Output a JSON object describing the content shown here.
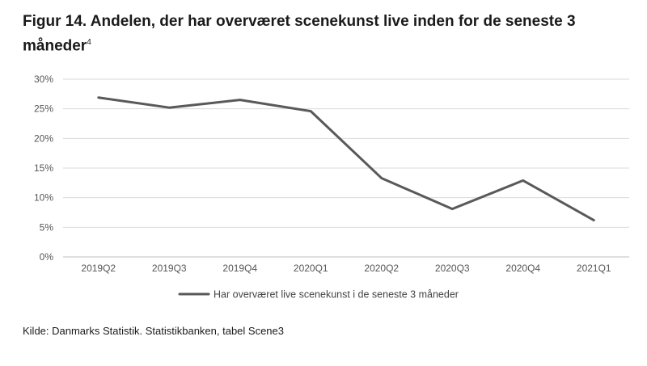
{
  "title": "Figur 14. Andelen, der har overværet scenekunst live inden for de seneste 3 måneder",
  "footnote_marker": "4",
  "source": "Kilde: Danmarks Statistik. Statistikbanken, tabel Scene3",
  "colors": {
    "line": "#595959",
    "grid": "#d9d9d9",
    "axis": "#bfbfbf"
  },
  "chart_data": {
    "type": "line",
    "categories": [
      "2019Q2",
      "2019Q3",
      "2019Q4",
      "2020Q1",
      "2020Q2",
      "2020Q3",
      "2020Q4",
      "2021Q1"
    ],
    "series": [
      {
        "name": "Har overværet live scenekunst i de seneste 3 måneder",
        "values": [
          26.9,
          25.2,
          26.5,
          24.6,
          13.3,
          8.1,
          12.9,
          6.2
        ]
      }
    ],
    "yticks": [
      "0%",
      "5%",
      "10%",
      "15%",
      "20%",
      "25%",
      "30%"
    ],
    "ylim": [
      0,
      30
    ],
    "grid": true,
    "legend": "bottom"
  }
}
